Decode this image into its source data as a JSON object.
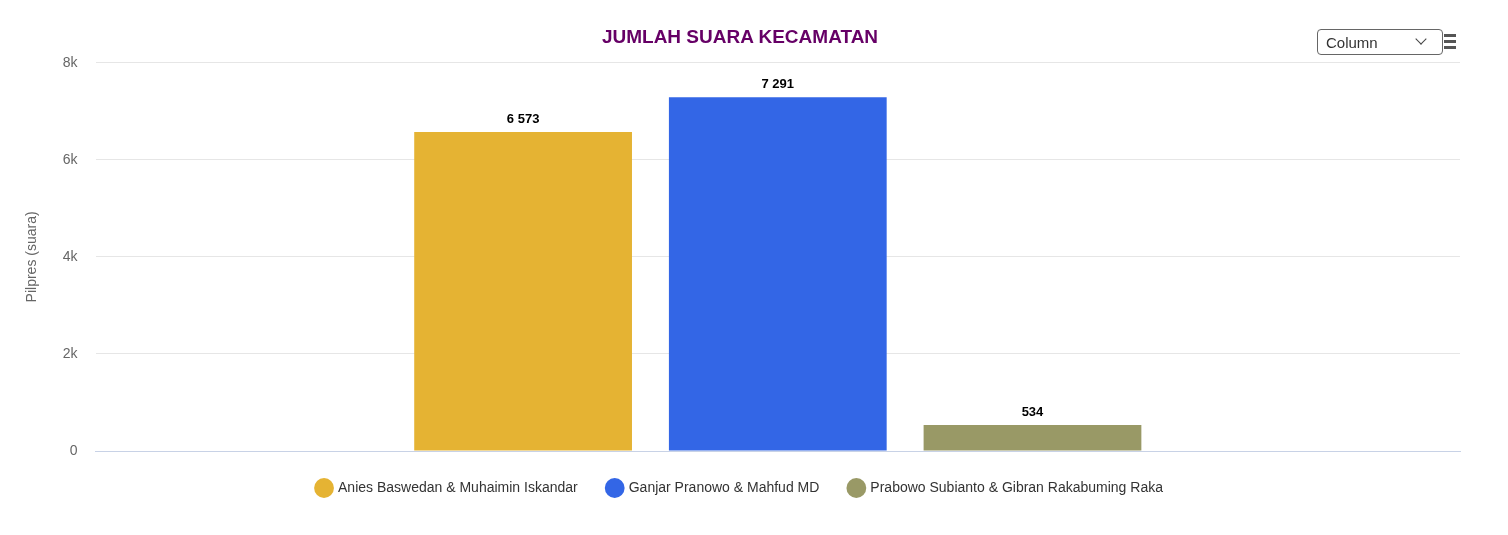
{
  "chart_data": {
    "type": "bar",
    "title": "JUMLAH SUARA KECAMATAN",
    "ylabel": "Pilpres (suara)",
    "categories": [
      null
    ],
    "series": [
      {
        "name": "Anies Baswedan & Muhaimin Iskandar",
        "color": "#e5b333",
        "values": [
          6573
        ],
        "value_labels": [
          "6 573"
        ]
      },
      {
        "name": "Ganjar Pranowo & Mahfud MD",
        "color": "#3366e6",
        "values": [
          7291
        ],
        "value_labels": [
          "7 291"
        ]
      },
      {
        "name": "Prabowo Subianto & Gibran Rakabuming Raka",
        "color": "#999966",
        "values": [
          534
        ],
        "value_labels": [
          "534"
        ]
      }
    ],
    "ylim": [
      0,
      8000
    ],
    "yticks": [
      {
        "value": 0,
        "label": "0"
      },
      {
        "value": 2000,
        "label": "2k"
      },
      {
        "value": 4000,
        "label": "4k"
      },
      {
        "value": 6000,
        "label": "6k"
      },
      {
        "value": 8000,
        "label": "8k"
      }
    ],
    "grid": "y",
    "legend": "bottom",
    "annotations": [
      "Column"
    ]
  }
}
